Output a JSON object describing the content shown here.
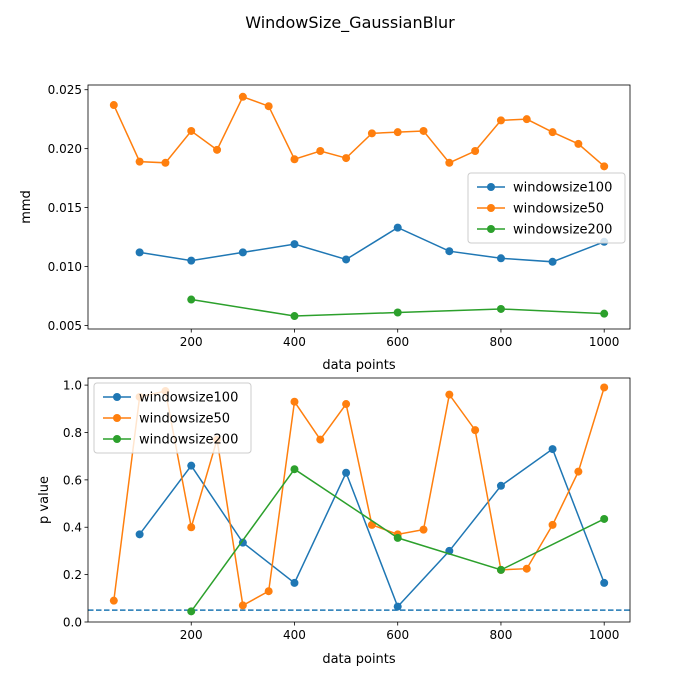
{
  "figure": {
    "title": "WindowSize_GaussianBlur"
  },
  "colors": {
    "windowsize100": "#1f77b4",
    "windowsize50": "#ff7f0e",
    "windowsize200": "#2ca02c",
    "threshold": "#1f77b4"
  },
  "chart_data": [
    {
      "type": "line",
      "xlabel": "data points",
      "ylabel": "mmd",
      "xlim": [
        0,
        1050
      ],
      "ylim": [
        0.0047,
        0.0254
      ],
      "xticks": [
        200,
        400,
        600,
        800,
        1000
      ],
      "yticks": [
        0.005,
        0.01,
        0.015,
        0.02,
        0.025
      ],
      "ytick_labels": [
        "0.005",
        "0.010",
        "0.015",
        "0.020",
        "0.025"
      ],
      "grid": false,
      "legend": "center-right",
      "series": [
        {
          "name": "windowsize100",
          "color": "#1f77b4",
          "x": [
            100,
            200,
            300,
            400,
            500,
            600,
            700,
            800,
            900,
            1000
          ],
          "y": [
            0.0112,
            0.0105,
            0.0112,
            0.0119,
            0.0106,
            0.0133,
            0.0113,
            0.0107,
            0.0104,
            0.0121
          ]
        },
        {
          "name": "windowsize50",
          "color": "#ff7f0e",
          "x": [
            50,
            100,
            150,
            200,
            250,
            300,
            350,
            400,
            450,
            500,
            550,
            600,
            650,
            700,
            750,
            800,
            850,
            900,
            950,
            1000
          ],
          "y": [
            0.0237,
            0.0189,
            0.0188,
            0.0215,
            0.0199,
            0.0244,
            0.0236,
            0.0191,
            0.0198,
            0.0192,
            0.0213,
            0.0214,
            0.0215,
            0.0188,
            0.0198,
            0.0224,
            0.0225,
            0.0214,
            0.0204,
            0.0185
          ]
        },
        {
          "name": "windowsize200",
          "color": "#2ca02c",
          "x": [
            200,
            400,
            600,
            800,
            1000
          ],
          "y": [
            0.0072,
            0.0058,
            0.0061,
            0.0064,
            0.006
          ]
        }
      ]
    },
    {
      "type": "line",
      "xlabel": "data points",
      "ylabel": "p value",
      "xlim": [
        0,
        1050
      ],
      "ylim": [
        0,
        1.03
      ],
      "xticks": [
        200,
        400,
        600,
        800,
        1000
      ],
      "yticks": [
        0.0,
        0.2,
        0.4,
        0.6,
        0.8,
        1.0
      ],
      "ytick_labels": [
        "0.0",
        "0.2",
        "0.4",
        "0.6",
        "0.8",
        "1.0"
      ],
      "grid": false,
      "legend": "upper-left",
      "threshold": 0.05,
      "series": [
        {
          "name": "windowsize100",
          "color": "#1f77b4",
          "x": [
            100,
            200,
            300,
            400,
            500,
            600,
            700,
            800,
            900,
            1000
          ],
          "y": [
            0.37,
            0.66,
            0.335,
            0.165,
            0.63,
            0.065,
            0.3,
            0.575,
            0.73,
            0.165
          ]
        },
        {
          "name": "windowsize50",
          "color": "#ff7f0e",
          "x": [
            50,
            100,
            150,
            200,
            250,
            300,
            350,
            400,
            450,
            500,
            550,
            600,
            650,
            700,
            750,
            800,
            850,
            900,
            950,
            1000
          ],
          "y": [
            0.09,
            0.95,
            0.975,
            0.4,
            0.77,
            0.07,
            0.13,
            0.93,
            0.77,
            0.92,
            0.41,
            0.37,
            0.39,
            0.96,
            0.81,
            0.22,
            0.225,
            0.41,
            0.635,
            0.99
          ]
        },
        {
          "name": "windowsize200",
          "color": "#2ca02c",
          "x": [
            200,
            400,
            600,
            800,
            1000
          ],
          "y": [
            0.045,
            0.645,
            0.355,
            0.22,
            0.435
          ]
        }
      ]
    }
  ]
}
